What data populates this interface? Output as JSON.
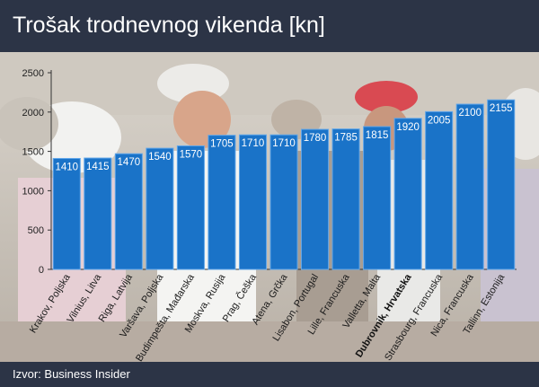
{
  "header": {
    "title": "Trošak trodnevnog vikenda [kn]"
  },
  "footer": {
    "source": "Izvor: Business Insider"
  },
  "colors": {
    "bar": "#1a73c8",
    "bar_edge": "#5fa6ea",
    "header_bg": "#2c3446",
    "highlight_label": "#111111"
  },
  "chart_data": {
    "type": "bar",
    "title": "Trošak trodnevnog vikenda [kn]",
    "xlabel": "",
    "ylabel": "",
    "ylim": [
      0,
      2500
    ],
    "yticks": [
      "0",
      "500",
      "1000",
      "1500",
      "2000",
      "2500"
    ],
    "grid": false,
    "highlight_category": "Dubrovnik, Hrvatska",
    "categories": [
      "Krakov, Poljska",
      "Vilnius, Litva",
      "Riga, Latvija",
      "Varšava, Poljska",
      "Budimpešta, Mađarska",
      "Moskva, Rusija",
      "Prag, Češka",
      "Atena, Grčka",
      "Lisabon, Portugal",
      "Lille, Francuska",
      "Valletta, Malta",
      "Dubrovnik, Hrvatska",
      "Strasbourg, Francuska",
      "Nica, Francuska",
      "Tallinn, Estonija"
    ],
    "values": [
      1410,
      1415,
      1470,
      1540,
      1570,
      1705,
      1710,
      1710,
      1780,
      1785,
      1815,
      1920,
      2005,
      2100,
      2155
    ]
  }
}
